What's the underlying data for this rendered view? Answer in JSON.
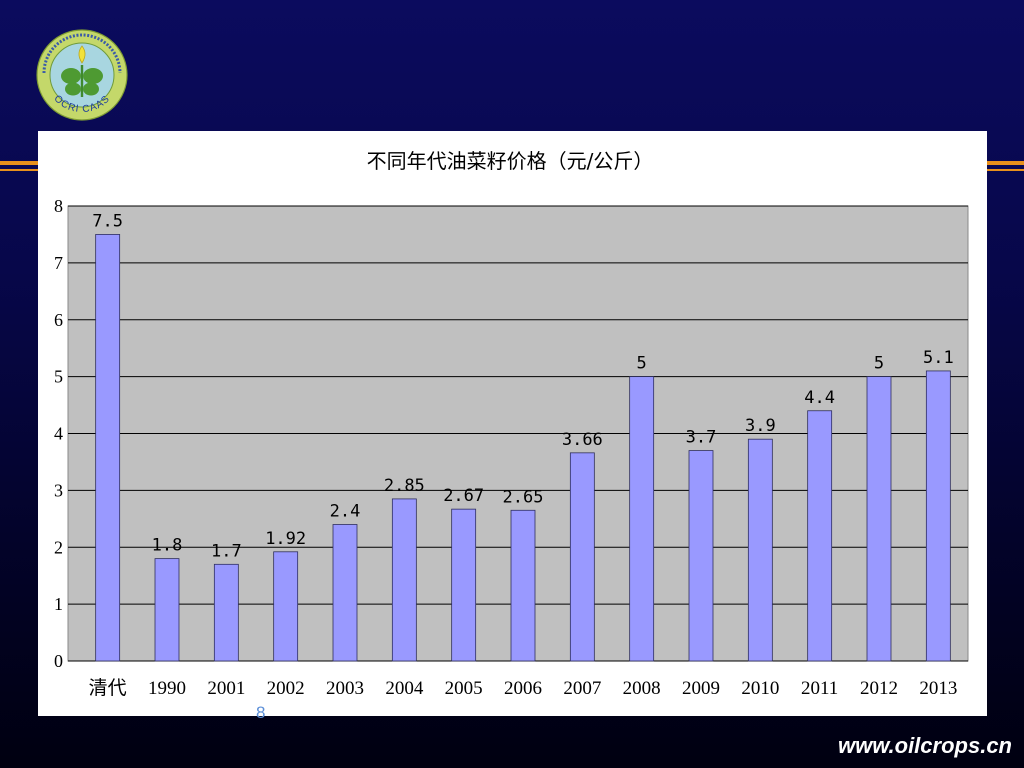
{
  "logo": {
    "text": "OCRI CAAS"
  },
  "chart_data": {
    "type": "bar",
    "title": "不同年代油菜籽价格（元/公斤）",
    "categories": [
      "清代",
      "1990",
      "2001",
      "2002",
      "2003",
      "2004",
      "2005",
      "2006",
      "2007",
      "2008",
      "2009",
      "2010",
      "2011",
      "2012",
      "2013"
    ],
    "values": [
      7.5,
      1.8,
      1.7,
      1.92,
      2.4,
      2.85,
      2.67,
      2.65,
      3.66,
      5,
      3.7,
      3.9,
      4.4,
      5,
      5.1
    ],
    "ylim": [
      0,
      8
    ],
    "yticks": [
      0,
      1,
      2,
      3,
      4,
      5,
      6,
      7,
      8
    ],
    "grid": true,
    "colors": {
      "bar": "#9999ff",
      "bar_border": "#2e2e5e",
      "plot_background": "#c0c0c0",
      "gridline": "#000000"
    }
  },
  "slide_number": "8",
  "footer": {
    "url": "www.oilcrops.cn"
  },
  "colors": {
    "background_top": "#0b0b5e",
    "background_bottom": "#000010",
    "accent_line": "#e8901c"
  }
}
